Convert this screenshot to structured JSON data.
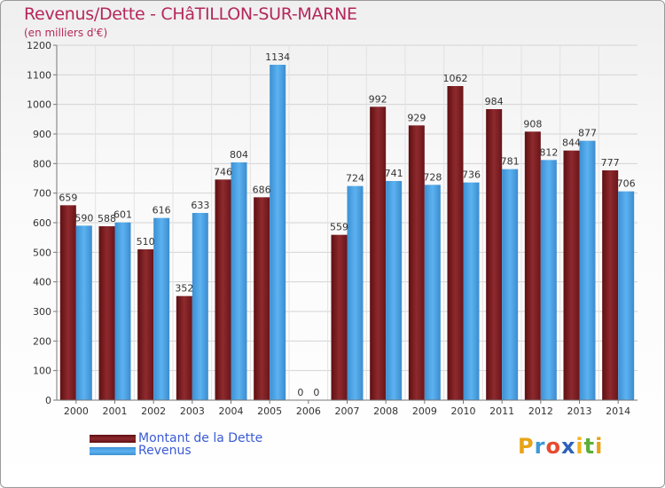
{
  "title": "Revenus/Dette - CHâTILLON-SUR-MARNE",
  "subtitle": "(en milliers d'€)",
  "legend": [
    {
      "label": "Montant de la Dette",
      "color": "#7a1e22"
    },
    {
      "label": "Revenus",
      "color": "#4aa3e6"
    }
  ],
  "logo": [
    "P",
    "r",
    "o",
    "x",
    "i",
    "t",
    "i"
  ],
  "logo_colors": [
    "#e8a317",
    "#3c9ad6",
    "#e64a2e",
    "#2e62b8",
    "#f2b31a",
    "#5cae3a",
    "#e8a317"
  ],
  "chart_data": {
    "type": "bar",
    "categories": [
      "2000",
      "2001",
      "2002",
      "2003",
      "2004",
      "2005",
      "2006",
      "2007",
      "2008",
      "2009",
      "2010",
      "2011",
      "2012",
      "2013",
      "2014"
    ],
    "series": [
      {
        "name": "Montant de la Dette",
        "color": "#7a1e22",
        "values": [
          659,
          588,
          510,
          352,
          746,
          686,
          0,
          559,
          992,
          929,
          1062,
          984,
          908,
          844,
          777
        ]
      },
      {
        "name": "Revenus",
        "color": "#4aa3e6",
        "values": [
          590,
          601,
          616,
          633,
          804,
          1134,
          0,
          724,
          741,
          728,
          736,
          781,
          812,
          877,
          706
        ]
      }
    ],
    "yticks": [
      0,
      100,
      200,
      300,
      400,
      500,
      600,
      700,
      800,
      900,
      1000,
      1100,
      1200
    ],
    "ylim": [
      0,
      1200
    ],
    "grid": true,
    "legend_position": "bottom-left"
  }
}
